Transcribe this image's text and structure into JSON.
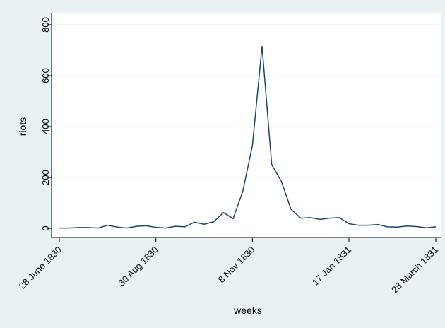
{
  "chart_data": {
    "type": "line",
    "title": "",
    "xlabel": "weeks",
    "ylabel": "riots",
    "ylim": [
      0,
      800
    ],
    "yticks": [
      0,
      200,
      400,
      600,
      800
    ],
    "x_tick_labels": [
      "28 June 1830",
      "30 Aug 1830",
      "8 Nov 1830",
      "17 Jan 1831",
      "28 March 1831"
    ],
    "grid": true,
    "colors": {
      "line": "#1a476f",
      "plot_bg": "#ffffff",
      "outer_bg": "#eaf1f3",
      "grid": "#eaf1f3"
    },
    "series": [
      {
        "x": [
          "28 June 1830",
          "5 July 1830",
          "12 July 1830",
          "19 July 1830",
          "26 July 1830",
          "2 Aug 1830",
          "9 Aug 1830",
          "16 Aug 1830",
          "23 Aug 1830",
          "30 Aug 1830",
          "6 Sept 1830",
          "13 Sept 1830",
          "20 Sept 1830",
          "27 Sept 1830",
          "4 Oct 1830",
          "11 Oct 1830",
          "18 Oct 1830",
          "25 Oct 1830",
          "1 Nov 1830",
          "8 Nov 1830",
          "15 Nov 1830",
          "22 Nov 1830",
          "29 Nov 1830",
          "6 Dec 1830",
          "13 Dec 1830",
          "20 Dec 1830",
          "27 Dec 1830",
          "3 Jan 1831",
          "10 Jan 1831",
          "17 Jan 1831",
          "24 Jan 1831",
          "31 Jan 1831",
          "7 Feb 1831",
          "14 Feb 1831",
          "21 Feb 1831",
          "28 Feb 1831",
          "7 March 1831",
          "14 March 1831",
          "21 March 1831",
          "28 March 1831"
        ],
        "values": [
          1,
          1,
          3,
          3,
          1,
          12,
          5,
          1,
          8,
          10,
          4,
          1,
          8,
          6,
          24,
          16,
          26,
          62,
          38,
          145,
          325,
          715,
          250,
          185,
          75,
          40,
          42,
          35,
          40,
          42,
          18,
          12,
          12,
          15,
          6,
          5,
          9,
          7,
          2,
          6
        ]
      }
    ]
  }
}
